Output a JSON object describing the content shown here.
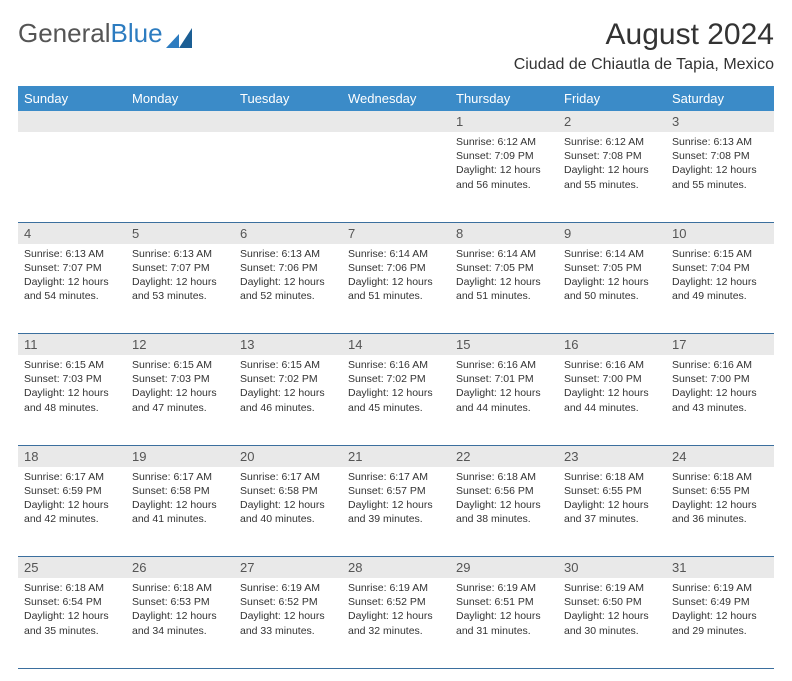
{
  "brand": {
    "part1": "General",
    "part2": "Blue"
  },
  "title": "August 2024",
  "location": "Ciudad de Chiautla de Tapia, Mexico",
  "colors": {
    "header_bg": "#3b8bc8",
    "header_text": "#ffffff",
    "daynum_bg": "#e9e9e9",
    "daynum_text": "#555555",
    "rule": "#3b6f9e",
    "body_text": "#333333",
    "brand_gray": "#555555",
    "brand_blue": "#2d7cc0",
    "page_bg": "#ffffff"
  },
  "weekdays": [
    "Sunday",
    "Monday",
    "Tuesday",
    "Wednesday",
    "Thursday",
    "Friday",
    "Saturday"
  ],
  "weeks": [
    [
      null,
      null,
      null,
      null,
      {
        "n": "1",
        "sr": "6:12 AM",
        "ss": "7:09 PM",
        "dl": "12 hours and 56 minutes."
      },
      {
        "n": "2",
        "sr": "6:12 AM",
        "ss": "7:08 PM",
        "dl": "12 hours and 55 minutes."
      },
      {
        "n": "3",
        "sr": "6:13 AM",
        "ss": "7:08 PM",
        "dl": "12 hours and 55 minutes."
      }
    ],
    [
      {
        "n": "4",
        "sr": "6:13 AM",
        "ss": "7:07 PM",
        "dl": "12 hours and 54 minutes."
      },
      {
        "n": "5",
        "sr": "6:13 AM",
        "ss": "7:07 PM",
        "dl": "12 hours and 53 minutes."
      },
      {
        "n": "6",
        "sr": "6:13 AM",
        "ss": "7:06 PM",
        "dl": "12 hours and 52 minutes."
      },
      {
        "n": "7",
        "sr": "6:14 AM",
        "ss": "7:06 PM",
        "dl": "12 hours and 51 minutes."
      },
      {
        "n": "8",
        "sr": "6:14 AM",
        "ss": "7:05 PM",
        "dl": "12 hours and 51 minutes."
      },
      {
        "n": "9",
        "sr": "6:14 AM",
        "ss": "7:05 PM",
        "dl": "12 hours and 50 minutes."
      },
      {
        "n": "10",
        "sr": "6:15 AM",
        "ss": "7:04 PM",
        "dl": "12 hours and 49 minutes."
      }
    ],
    [
      {
        "n": "11",
        "sr": "6:15 AM",
        "ss": "7:03 PM",
        "dl": "12 hours and 48 minutes."
      },
      {
        "n": "12",
        "sr": "6:15 AM",
        "ss": "7:03 PM",
        "dl": "12 hours and 47 minutes."
      },
      {
        "n": "13",
        "sr": "6:15 AM",
        "ss": "7:02 PM",
        "dl": "12 hours and 46 minutes."
      },
      {
        "n": "14",
        "sr": "6:16 AM",
        "ss": "7:02 PM",
        "dl": "12 hours and 45 minutes."
      },
      {
        "n": "15",
        "sr": "6:16 AM",
        "ss": "7:01 PM",
        "dl": "12 hours and 44 minutes."
      },
      {
        "n": "16",
        "sr": "6:16 AM",
        "ss": "7:00 PM",
        "dl": "12 hours and 44 minutes."
      },
      {
        "n": "17",
        "sr": "6:16 AM",
        "ss": "7:00 PM",
        "dl": "12 hours and 43 minutes."
      }
    ],
    [
      {
        "n": "18",
        "sr": "6:17 AM",
        "ss": "6:59 PM",
        "dl": "12 hours and 42 minutes."
      },
      {
        "n": "19",
        "sr": "6:17 AM",
        "ss": "6:58 PM",
        "dl": "12 hours and 41 minutes."
      },
      {
        "n": "20",
        "sr": "6:17 AM",
        "ss": "6:58 PM",
        "dl": "12 hours and 40 minutes."
      },
      {
        "n": "21",
        "sr": "6:17 AM",
        "ss": "6:57 PM",
        "dl": "12 hours and 39 minutes."
      },
      {
        "n": "22",
        "sr": "6:18 AM",
        "ss": "6:56 PM",
        "dl": "12 hours and 38 minutes."
      },
      {
        "n": "23",
        "sr": "6:18 AM",
        "ss": "6:55 PM",
        "dl": "12 hours and 37 minutes."
      },
      {
        "n": "24",
        "sr": "6:18 AM",
        "ss": "6:55 PM",
        "dl": "12 hours and 36 minutes."
      }
    ],
    [
      {
        "n": "25",
        "sr": "6:18 AM",
        "ss": "6:54 PM",
        "dl": "12 hours and 35 minutes."
      },
      {
        "n": "26",
        "sr": "6:18 AM",
        "ss": "6:53 PM",
        "dl": "12 hours and 34 minutes."
      },
      {
        "n": "27",
        "sr": "6:19 AM",
        "ss": "6:52 PM",
        "dl": "12 hours and 33 minutes."
      },
      {
        "n": "28",
        "sr": "6:19 AM",
        "ss": "6:52 PM",
        "dl": "12 hours and 32 minutes."
      },
      {
        "n": "29",
        "sr": "6:19 AM",
        "ss": "6:51 PM",
        "dl": "12 hours and 31 minutes."
      },
      {
        "n": "30",
        "sr": "6:19 AM",
        "ss": "6:50 PM",
        "dl": "12 hours and 30 minutes."
      },
      {
        "n": "31",
        "sr": "6:19 AM",
        "ss": "6:49 PM",
        "dl": "12 hours and 29 minutes."
      }
    ]
  ],
  "labels": {
    "sunrise": "Sunrise:",
    "sunset": "Sunset:",
    "daylight": "Daylight:"
  }
}
